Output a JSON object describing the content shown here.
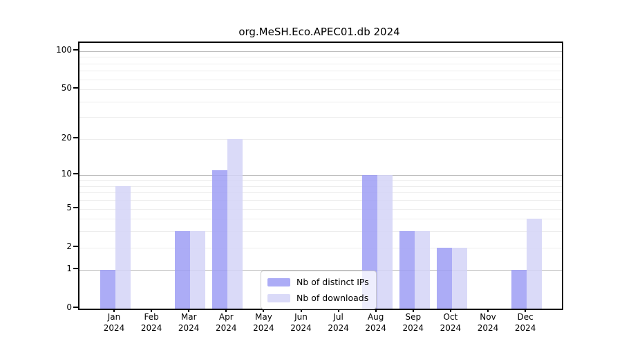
{
  "title": "org.MeSH.Eco.APEC01.db 2024",
  "chart_data": {
    "type": "bar",
    "title": "org.MeSH.Eco.APEC01.db 2024",
    "categories": [
      "Jan",
      "Feb",
      "Mar",
      "Apr",
      "May",
      "Jun",
      "Jul",
      "Aug",
      "Sep",
      "Oct",
      "Nov",
      "Dec"
    ],
    "x_tick_year_line": "2024",
    "series": [
      {
        "name": "Nb of distinct IPs",
        "color": "#9d9df4",
        "values": [
          1,
          0,
          3,
          11,
          0,
          0,
          0,
          10,
          3,
          2,
          0,
          1
        ]
      },
      {
        "name": "Nb of downloads",
        "color": "#d3d3f7",
        "values": [
          8,
          0,
          3,
          20,
          0,
          0,
          0,
          10,
          3,
          2,
          0,
          4
        ]
      }
    ],
    "y_axis": {
      "scale": "log1p",
      "tick_values": [
        0,
        1,
        2,
        5,
        10,
        20,
        50,
        100
      ],
      "tick_labels": [
        "0",
        "1",
        "2",
        "5",
        "10",
        "20",
        "50",
        "100"
      ],
      "major_gridlines": [
        1,
        10,
        100
      ],
      "minor_gridlines": [
        2,
        3,
        4,
        5,
        6,
        7,
        8,
        9,
        20,
        30,
        40,
        50,
        60,
        70,
        80,
        90
      ],
      "ylim": [
        0,
        117
      ]
    },
    "legend": {
      "position": "inside-lower-center",
      "entries": [
        "Nb of distinct IPs",
        "Nb of downloads"
      ]
    },
    "grid": true
  },
  "colors": {
    "major_grid": "#bdbdbd",
    "minor_grid": "#ededed",
    "axis": "#000000",
    "background": "#ffffff",
    "legend_border": "#cccccc"
  }
}
